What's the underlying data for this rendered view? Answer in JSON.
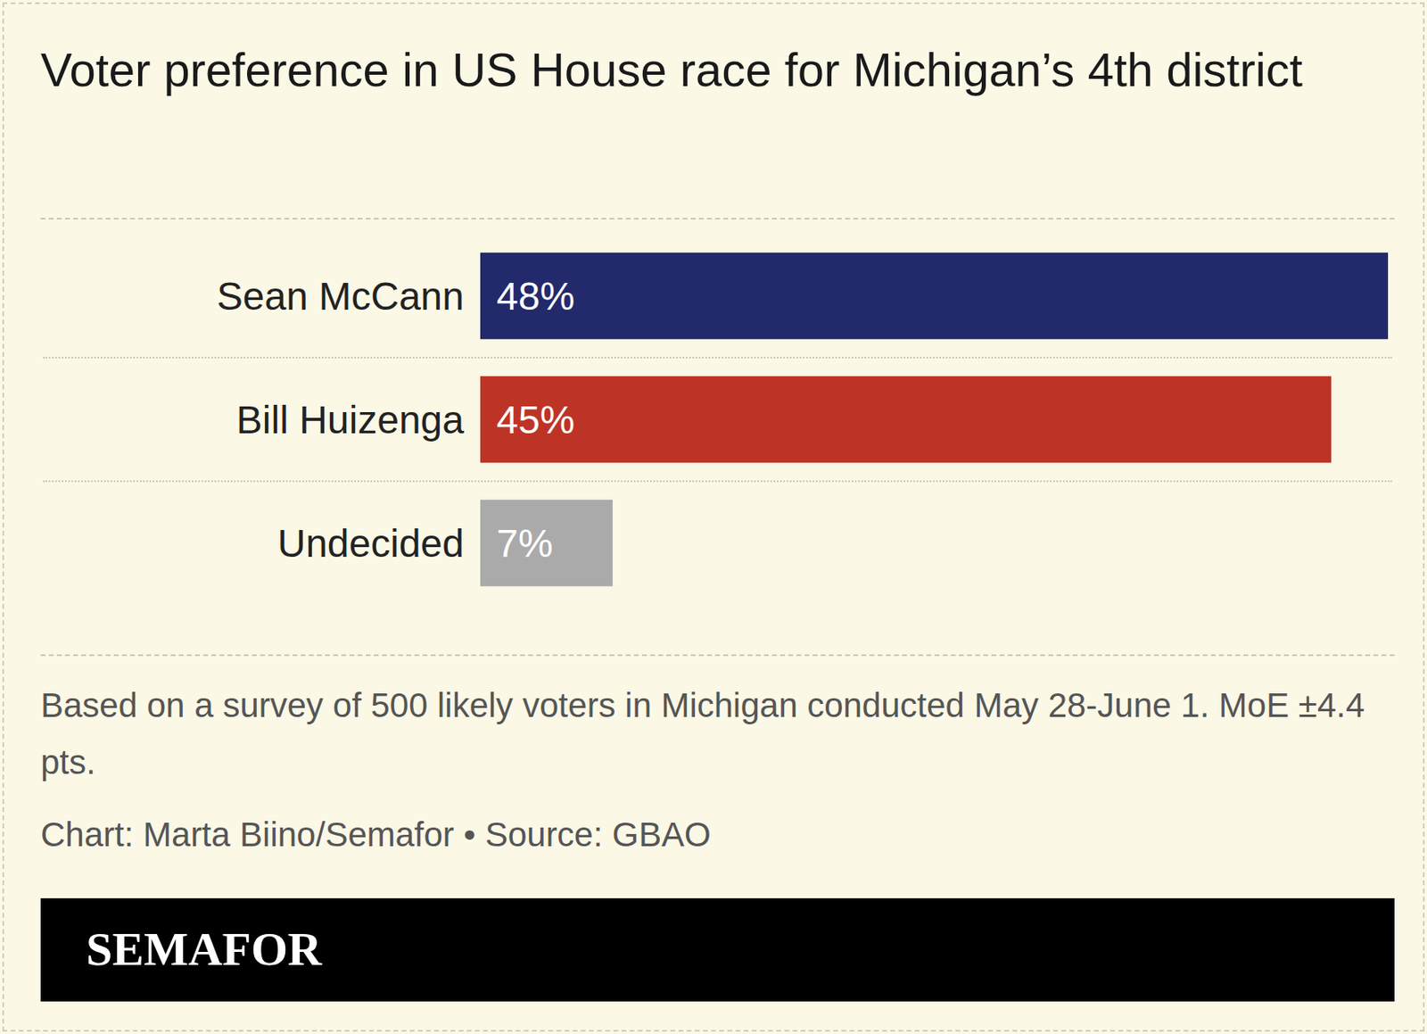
{
  "chart_data": {
    "type": "bar",
    "title": "Voter preference in US House race for Michigan’s 4th district",
    "categories": [
      "Sean McCann",
      "Bill Huizenga",
      "Undecided"
    ],
    "values": [
      48,
      45,
      7
    ],
    "value_labels": [
      "48%",
      "45%",
      "7%"
    ],
    "colors": [
      "#232a6b",
      "#bd3426",
      "#aaaaaa"
    ],
    "orientation": "horizontal",
    "data_labels": true,
    "tick_labels": "y",
    "grid": false,
    "xlim": [
      0,
      48
    ],
    "caption": "Based on a survey of 500 likely voters in Michigan conducted May 28-June 1. MoE ±4.4 pts.",
    "credit": "Chart: Marta Biino/Semafor • Source: GBAO",
    "logo": "SEMAFOR"
  }
}
